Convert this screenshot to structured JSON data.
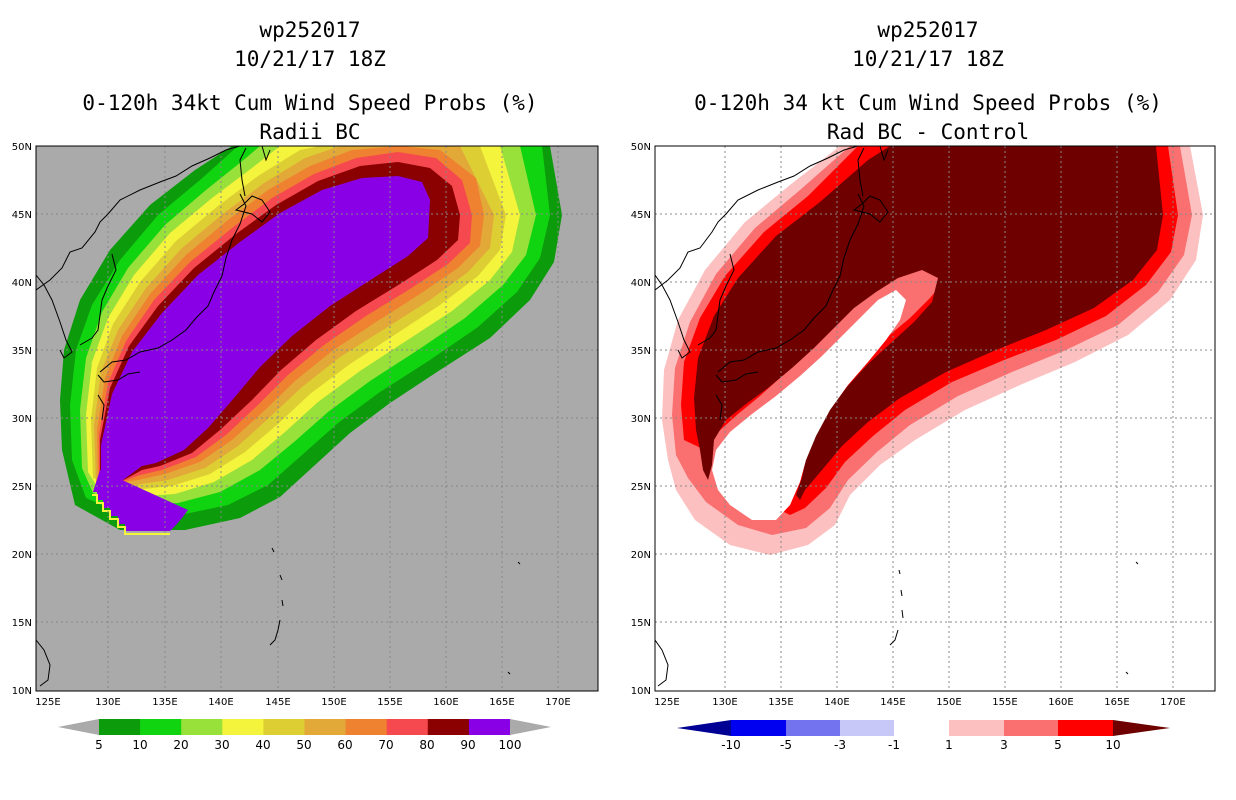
{
  "left_panel": {
    "storm_id": "wp252017",
    "datetime": "10/21/17 18Z",
    "title": "0-120h 34kt Cum Wind Speed Probs (%)",
    "subtitle": "Radii BC",
    "colorbar": {
      "labels": [
        "5",
        "10",
        "20",
        "30",
        "40",
        "50",
        "60",
        "70",
        "80",
        "90",
        "100"
      ],
      "colors": [
        "#0b9b0b",
        "#11d411",
        "#98e03a",
        "#f4f43c",
        "#ddcf33",
        "#e2a838",
        "#ef8231",
        "#f5494f",
        "#8b0000",
        "#8a00e6"
      ]
    }
  },
  "right_panel": {
    "storm_id": "wp252017",
    "datetime": "10/21/17 18Z",
    "title": "0-120h 34 kt Cum Wind Speed Probs (%)",
    "subtitle": "Rad BC - Control",
    "colorbar": {
      "labels": [
        "-10",
        "-5",
        "-3",
        "-1",
        "1",
        "3",
        "5",
        "10"
      ],
      "colors": [
        "#000095",
        "#0000f0",
        "#7373f0",
        "#c8c8f8",
        "#ffffff",
        "#fcc0c0",
        "#fa7070",
        "#ff0000",
        "#6e0000"
      ]
    }
  },
  "axes": {
    "lat_labels": [
      "50N",
      "45N",
      "40N",
      "35N",
      "30N",
      "25N",
      "20N",
      "15N",
      "10N"
    ],
    "lon_labels": [
      "125E",
      "130E",
      "135E",
      "140E",
      "145E",
      "150E",
      "155E",
      "160E",
      "165E",
      "170E"
    ]
  },
  "colors": {
    "background_left": "#aaaaaa",
    "grid": "#888888"
  }
}
